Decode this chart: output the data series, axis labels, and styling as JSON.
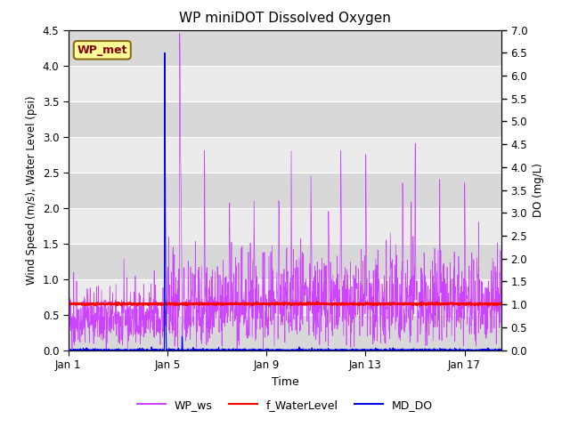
{
  "title": "WP miniDOT Dissolved Oxygen",
  "xlabel": "Time",
  "ylabel_left": "Wind Speed (m/s), Water Level (psi)",
  "ylabel_right": "DO (mg/L)",
  "annotation_text": "WP_met",
  "annotation_color": "#8B0000",
  "annotation_bg": "#FFFF99",
  "annotation_border": "#8B6914",
  "xlim_start": 0,
  "xlim_end": 17.5,
  "ylim_left": [
    0.0,
    4.5
  ],
  "ylim_right": [
    0.0,
    7.0
  ],
  "yticks_left": [
    0.0,
    0.5,
    1.0,
    1.5,
    2.0,
    2.5,
    3.0,
    3.5,
    4.0,
    4.5
  ],
  "yticks_right": [
    0.0,
    0.5,
    1.0,
    1.5,
    2.0,
    2.5,
    3.0,
    3.5,
    4.0,
    4.5,
    5.0,
    5.5,
    6.0,
    6.5,
    7.0
  ],
  "xtick_positions": [
    0,
    4,
    8,
    12,
    16
  ],
  "xtick_labels": [
    "Jan 1",
    "Jan 5",
    "Jan 9",
    "Jan 13",
    "Jan 17"
  ],
  "wp_ws_color": "#CC44FF",
  "f_water_color": "#FF0000",
  "md_do_color": "#0000EE",
  "bg_color": "#ffffff",
  "plot_bg_color": "#ebebeb",
  "band_color": "#d8d8d8",
  "grid_color": "#ffffff",
  "f_water_level_value": 0.65,
  "seed": 42
}
